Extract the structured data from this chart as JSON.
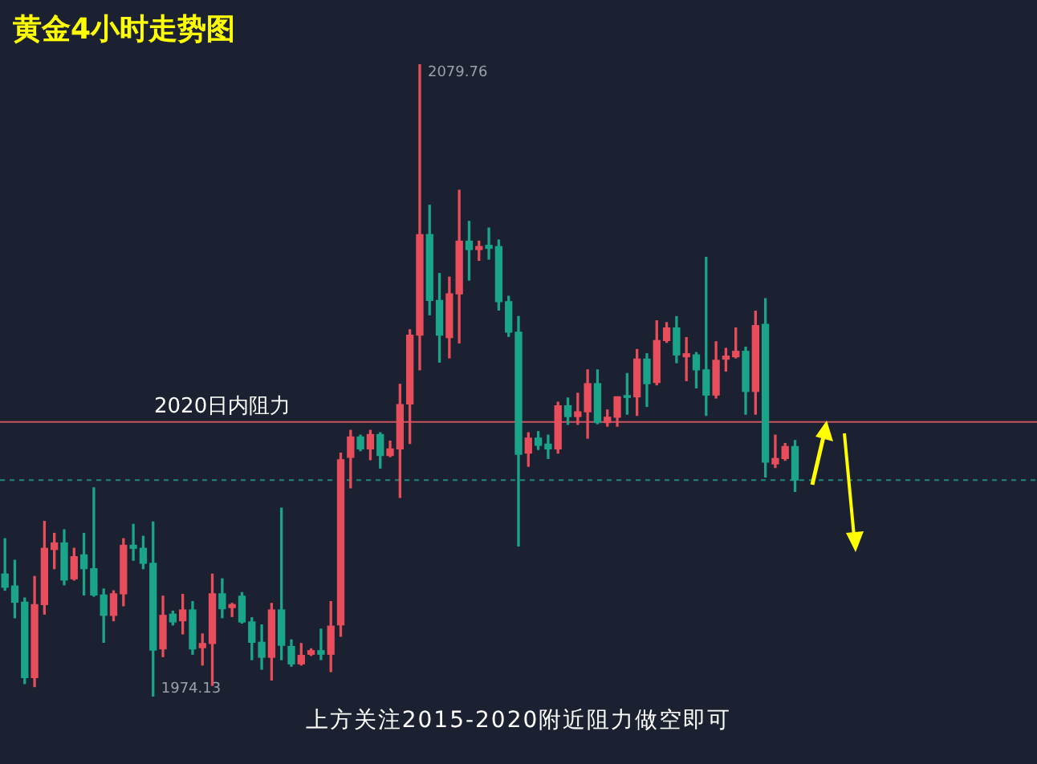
{
  "chart_data": {
    "type": "candlestick",
    "title": "黄金4小时走势图",
    "annotations": [
      "上方关注2015-2020附近阻力做空即可",
      "2079.76",
      "1974.13"
    ],
    "categories": [
      null,
      null,
      null,
      null,
      null,
      null,
      null,
      null,
      null,
      null,
      null,
      null,
      null,
      null,
      null,
      null,
      null,
      null,
      null,
      null,
      null,
      null,
      null,
      null,
      null,
      null,
      null,
      null,
      null,
      null,
      null,
      null,
      null,
      null,
      null,
      null,
      null,
      null,
      null,
      null,
      null,
      null,
      null,
      null,
      null,
      null,
      null,
      null,
      null,
      null,
      null,
      null,
      null,
      null,
      null,
      null,
      null,
      null,
      null,
      null,
      null,
      null,
      null,
      null,
      null,
      null,
      null,
      null,
      null,
      null,
      null,
      null,
      null,
      null,
      null,
      null,
      null,
      null,
      null,
      null,
      null,
      null,
      null,
      null,
      null,
      null,
      null,
      null,
      null,
      null,
      null,
      null,
      null,
      null,
      null,
      null,
      null,
      null,
      null,
      null,
      null,
      null,
      null,
      null,
      null
    ],
    "colors": [
      "#1aa58a",
      "#1aa58a",
      "#1aa58a",
      "#e84d5b",
      "#e84d5b",
      "#e84d5b",
      "#1aa58a",
      "#e84d5b",
      "#1aa58a",
      "#1aa58a",
      "#1aa58a",
      "#e84d5b",
      "#e84d5b",
      "#1aa58a",
      "#1aa58a",
      "#1aa58a",
      "#e84d5b",
      "#1aa58a",
      "#e84d5b",
      "#1aa58a",
      "#e84d5b",
      "#e84d5b",
      "#1aa58a",
      "#e84d5b",
      "#1aa58a",
      "#1aa58a",
      "#1aa58a",
      "#e84d5b",
      "#1aa58a",
      "#1aa58a",
      "#e84d5b",
      "#e84d5b",
      "#1aa58a",
      "#e84d5b",
      "#e84d5b",
      "#e84d5b",
      "#1aa58a",
      "#e84d5b",
      "#1aa58a",
      "#e84d5b",
      "#e84d5b",
      "#e84d5b",
      "#e84d5b",
      "#1aa58a",
      "#1aa58a",
      "#e84d5b",
      "#e84d5b",
      "#1aa58a",
      "#e84d5b",
      "#1aa58a",
      "#1aa58a",
      "#1aa58a",
      "#1aa58a",
      "#e84d5b",
      "#1aa58a",
      "#1aa58a",
      "#e84d5b",
      "#1aa58a",
      "#e84d5b",
      "#e84d5b",
      "#1aa58a",
      "#e84d5b",
      "#e84d5b",
      "#1aa58a",
      "#e84d5b",
      "#1aa58a",
      "#e84d5b",
      "#e84d5b",
      "#1aa58a",
      "#e84d5b",
      "#1aa58a",
      "#1aa58a",
      "#e84d5b",
      "#e84d5b",
      "#e84d5b",
      "#1aa58a",
      "#e84d5b",
      "#1aa58a",
      "#e84d5b",
      "#e84d5b",
      "#1aa58a",
      null,
      null,
      null,
      null,
      null,
      null,
      null,
      null,
      null,
      null,
      null,
      null,
      null,
      null,
      null,
      null,
      null,
      null,
      null,
      null,
      null,
      null,
      null,
      null
    ],
    "ohlc": [
      [
        1994.6,
        2000.5,
        1991.9,
        1992.4
      ],
      [
        1992.6,
        1996.9,
        1987.3,
        1989.9
      ],
      [
        1989.9,
        1990.6,
        1976.3,
        1977.3
      ],
      [
        1977.3,
        1994.2,
        1975.8,
        1989.5
      ],
      [
        1989.5,
        2003.4,
        1987.9,
        1998.9
      ],
      [
        1998.7,
        2001.4,
        1995.5,
        1999.8
      ],
      [
        1999.8,
        2002.0,
        1992.8,
        1993.6
      ],
      [
        1993.8,
        1998.9,
        1993.6,
        1997.5
      ],
      [
        1997.8,
        2001.4,
        1991.1,
        1995.5
      ],
      [
        1995.5,
        2009.0,
        1990.9,
        1991.1
      ],
      [
        1991.1,
        1992.1,
        1983.2,
        1987.7
      ],
      [
        1987.7,
        1991.8,
        1986.8,
        1991.3
      ],
      [
        1991.3,
        2000.5,
        1989.3,
        1999.4
      ],
      [
        1999.4,
        2002.9,
        1996.9,
        1998.9
      ],
      [
        1998.9,
        2000.9,
        1995.5,
        1996.4
      ],
      [
        1996.4,
        2003.3,
        1974.13,
        1981.9
      ],
      [
        1982.1,
        1990.9,
        1980.8,
        1987.7
      ],
      [
        1987.9,
        1988.4,
        1986.1,
        1986.6
      ],
      [
        1986.8,
        1991.2,
        1984.6,
        1988.6
      ],
      [
        1988.6,
        1990.0,
        1981.2,
        1982.1
      ],
      [
        1982.3,
        1984.6,
        1979.4,
        1983.0
      ],
      [
        1983.0,
        1994.6,
        1976.0,
        1991.3
      ],
      [
        1991.3,
        1993.8,
        1987.3,
        1988.8
      ],
      [
        1989.0,
        1989.7,
        1987.5,
        1989.5
      ],
      [
        1990.9,
        1991.5,
        1986.4,
        1986.6
      ],
      [
        1986.6,
        1987.3,
        1980.3,
        1983.2
      ],
      [
        1983.2,
        1986.1,
        1978.7,
        1980.7
      ],
      [
        1980.7,
        1989.7,
        1976.9,
        1988.6
      ],
      [
        1988.6,
        2005.6,
        1980.3,
        1982.7
      ],
      [
        1982.5,
        1983.6,
        1979.2,
        1979.6
      ],
      [
        1979.6,
        1983.0,
        1979.4,
        1981.0
      ],
      [
        1981.2,
        1982.1,
        1981.0,
        1981.8
      ],
      [
        1981.8,
        1985.4,
        1980.3,
        1981.2
      ],
      [
        1981.2,
        1990.0,
        1978.3,
        1985.9
      ],
      [
        1986.1,
        2014.8,
        1984.2,
        2013.7
      ],
      [
        2014.1,
        2018.6,
        2009.0,
        2017.5
      ],
      [
        2017.5,
        2017.8,
        2015.2,
        2015.5
      ],
      [
        2015.5,
        2018.6,
        2013.7,
        2017.9
      ],
      [
        2017.9,
        2018.2,
        2012.3,
        2014.4
      ],
      [
        2014.4,
        2016.8,
        2014.2,
        2015.5
      ],
      [
        2015.5,
        2026.3,
        2007.4,
        2022.9
      ],
      [
        2023.0,
        2035.4,
        2016.4,
        2034.5
      ],
      [
        2034.5,
        2079.76,
        2028.7,
        2051.3
      ],
      [
        2051.3,
        2056.2,
        2037.9,
        2040.3
      ],
      [
        2040.3,
        2044.8,
        2030.0,
        2034.5
      ],
      [
        2034.1,
        2044.2,
        2030.7,
        2041.4
      ],
      [
        2041.4,
        2058.7,
        2033.2,
        2050.2
      ],
      [
        2050.2,
        2053.5,
        2043.7,
        2048.8
      ],
      [
        2048.8,
        2050.2,
        2047.0,
        2049.3
      ],
      [
        2049.5,
        2052.4,
        2047.2,
        2049.0
      ],
      [
        2049.3,
        2050.4,
        2038.7,
        2040.1
      ],
      [
        2040.1,
        2041.0,
        2034.3,
        2035.0
      ],
      [
        2035.0,
        2037.6,
        1999.3,
        2014.6
      ],
      [
        2014.8,
        2018.2,
        2012.6,
        2017.3
      ],
      [
        2017.3,
        2018.4,
        2015.4,
        2016.1
      ],
      [
        2016.3,
        2017.8,
        2013.9,
        2015.5
      ],
      [
        2015.5,
        2023.3,
        2014.8,
        2022.7
      ],
      [
        2022.7,
        2024.0,
        2019.6,
        2020.9
      ],
      [
        2020.9,
        2024.8,
        2019.6,
        2021.7
      ],
      [
        2021.7,
        2028.7,
        2017.3,
        2026.4
      ],
      [
        2026.4,
        2028.7,
        2019.7,
        2019.9
      ],
      [
        2019.9,
        2022.0,
        2019.3,
        2020.8
      ],
      [
        2020.8,
        2024.2,
        2019.3,
        2024.2
      ],
      [
        2024.4,
        2028.1,
        2021.3,
        2024.1
      ],
      [
        2024.2,
        2032.1,
        2021.1,
        2030.5
      ],
      [
        2030.5,
        2031.4,
        2022.6,
        2026.4
      ],
      [
        2026.6,
        2036.9,
        2026.2,
        2033.6
      ],
      [
        2033.6,
        2036.6,
        2033.3,
        2035.7
      ],
      [
        2035.7,
        2037.6,
        2029.9,
        2031.2
      ],
      [
        2030.9,
        2034.1,
        2026.9,
        2031.4
      ],
      [
        2031.2,
        2031.6,
        2025.7,
        2028.7
      ],
      [
        2028.7,
        2047.5,
        2021.1,
        2024.5
      ],
      [
        2024.5,
        2033.4,
        2024.0,
        2030.3
      ],
      [
        2030.5,
        2032.3,
        2028.5,
        2031.0
      ],
      [
        2030.9,
        2035.7,
        2030.7,
        2031.8
      ],
      [
        2031.8,
        2032.5,
        2021.3,
        2025.1
      ],
      [
        2025.1,
        2038.5,
        2021.3,
        2036.1
      ],
      [
        2036.3,
        2040.6,
        2010.8,
        2013.3
      ],
      [
        2013.0,
        2017.8,
        2012.4,
        2013.9
      ],
      [
        2013.9,
        2016.4,
        2013.6,
        2015.9
      ],
      [
        2015.9,
        2016.9,
        2008.4,
        2010.3
      ],
      null,
      null,
      null,
      null,
      null,
      null,
      null,
      null,
      null,
      null,
      null,
      null,
      null,
      null,
      null,
      null,
      null,
      null,
      null,
      null,
      null,
      null,
      null,
      null
    ],
    "ref_lines": [
      {
        "axis": "y",
        "value": 2020,
        "label": "2020日内阻力",
        "color": "#c9545e",
        "line_style": "solid"
      },
      {
        "axis": "y",
        "value": 2010.3,
        "color": "#1f8a78",
        "line_style": "dashed"
      }
    ],
    "legend": false
  }
}
